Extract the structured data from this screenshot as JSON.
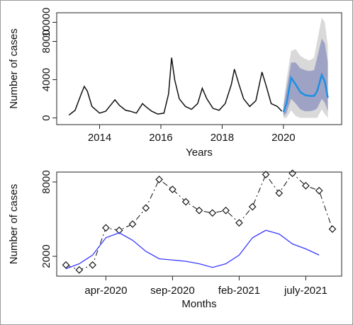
{
  "chart_data": [
    {
      "type": "line",
      "xlabel": "Years",
      "ylabel": "Number of cases",
      "xlim": [
        2012.6,
        2021.9
      ],
      "ylim": [
        -700,
        11000
      ],
      "xticks": [
        2014,
        2016,
        2018,
        2020
      ],
      "yticks": [
        0,
        4000,
        8000,
        10000
      ],
      "bands": [
        {
          "color": "#d9d9d9",
          "x": [
            2020.0,
            2020.1,
            2020.25,
            2020.4,
            2020.55,
            2020.7,
            2020.85,
            2021.0,
            2021.1,
            2021.25,
            2021.35,
            2021.45
          ],
          "lower": [
            0,
            0,
            800,
            200,
            0,
            0,
            0,
            0,
            0,
            900,
            400,
            0
          ],
          "upper": [
            1500,
            4000,
            7000,
            7200,
            6500,
            6200,
            6000,
            6300,
            8000,
            10500,
            10000,
            7500
          ]
        },
        {
          "color": "#9ea3c6",
          "x": [
            2020.0,
            2020.1,
            2020.25,
            2020.4,
            2020.55,
            2020.7,
            2020.85,
            2021.0,
            2021.1,
            2021.25,
            2021.35,
            2021.45
          ],
          "lower": [
            200,
            500,
            2000,
            1500,
            900,
            700,
            700,
            800,
            1000,
            2000,
            1600,
            700
          ],
          "upper": [
            1200,
            3000,
            5800,
            5800,
            5200,
            5000,
            4900,
            5000,
            6300,
            8300,
            7800,
            5800
          ]
        }
      ],
      "series": [
        {
          "color": "#111111",
          "width": 1.5,
          "x": [
            2013.0,
            2013.2,
            2013.4,
            2013.5,
            2013.6,
            2013.75,
            2014.0,
            2014.2,
            2014.4,
            2014.5,
            2014.65,
            2014.85,
            2015.0,
            2015.2,
            2015.4,
            2015.5,
            2015.7,
            2015.9,
            2016.1,
            2016.25,
            2016.35,
            2016.45,
            2016.6,
            2016.8,
            2017.0,
            2017.2,
            2017.35,
            2017.5,
            2017.7,
            2017.9,
            2018.1,
            2018.3,
            2018.4,
            2018.55,
            2018.7,
            2018.9,
            2019.1,
            2019.3,
            2019.45,
            2019.6,
            2019.8,
            2019.95
          ],
          "values": [
            300,
            800,
            2500,
            3300,
            2800,
            1200,
            500,
            700,
            1500,
            1900,
            1300,
            800,
            700,
            500,
            1500,
            1200,
            700,
            400,
            500,
            2500,
            6300,
            4000,
            2000,
            1200,
            900,
            1500,
            3100,
            2000,
            1000,
            800,
            1500,
            3500,
            5100,
            3500,
            2000,
            1200,
            1800,
            4800,
            3200,
            1500,
            1200,
            700
          ]
        },
        {
          "color": "#1e8fe0",
          "width": 2.5,
          "x": [
            2020.0,
            2020.1,
            2020.25,
            2020.4,
            2020.55,
            2020.7,
            2020.85,
            2021.0,
            2021.1,
            2021.25,
            2021.35,
            2021.45
          ],
          "values": [
            600,
            1500,
            4200,
            3500,
            2700,
            2400,
            2300,
            2300,
            2800,
            4500,
            3800,
            2100
          ]
        }
      ]
    },
    {
      "type": "line",
      "xlabel": "Months",
      "ylabel": "Number of cases",
      "categories": [
        null,
        null,
        null,
        "apr-2020",
        null,
        null,
        null,
        null,
        "sep-2020",
        null,
        null,
        null,
        null,
        "feb-2021",
        null,
        null,
        null,
        null,
        "july-2021",
        null,
        null
      ],
      "ylim": [
        400,
        8800
      ],
      "yticks": [
        2000,
        8000
      ],
      "series": [
        {
          "color": "#111111",
          "width": 1,
          "linestyle": "dashdot",
          "marker": "diamond",
          "values": [
            1300,
            900,
            1300,
            4300,
            4100,
            4600,
            5900,
            8200,
            7400,
            6400,
            5700,
            5500,
            5700,
            4700,
            6000,
            8600,
            7100,
            8700,
            7700,
            7300,
            4200
          ]
        },
        {
          "color": "#3a3aff",
          "width": 1.3,
          "values": [
            1000,
            1400,
            2100,
            3500,
            3900,
            3300,
            2400,
            1800,
            1700,
            1600,
            1400,
            1100,
            1400,
            2100,
            3500,
            4100,
            3800,
            3000,
            2600,
            2100,
            null
          ]
        }
      ]
    }
  ]
}
